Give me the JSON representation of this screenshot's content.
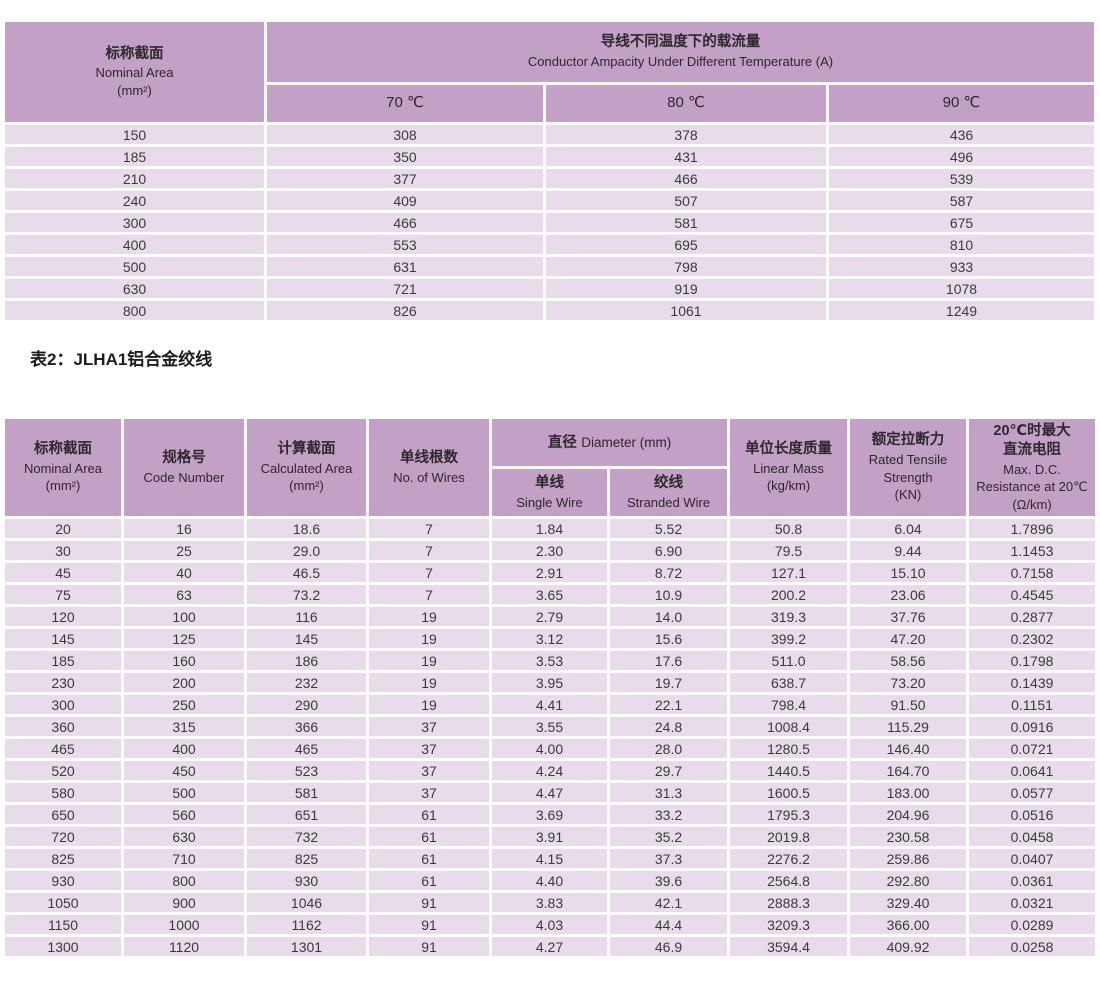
{
  "colors": {
    "header_bg": "#c3a0c5",
    "row_bg": "#e8dcea",
    "page_bg": "#ffffff",
    "text": "#3a3a3a"
  },
  "table1": {
    "nominal_area_zh": "标称截面",
    "nominal_area_en": "Nominal Area\n(mm²)",
    "group_title_zh": "导线不同温度下的载流量",
    "group_title_en": "Conductor Ampacity Under Different Temperature (A)",
    "temps": [
      "70 ℃",
      "80 ℃",
      "90 ℃"
    ],
    "rows": [
      [
        "150",
        "308",
        "378",
        "436"
      ],
      [
        "185",
        "350",
        "431",
        "496"
      ],
      [
        "210",
        "377",
        "466",
        "539"
      ],
      [
        "240",
        "409",
        "507",
        "587"
      ],
      [
        "300",
        "466",
        "581",
        "675"
      ],
      [
        "400",
        "553",
        "695",
        "810"
      ],
      [
        "500",
        "631",
        "798",
        "933"
      ],
      [
        "630",
        "721",
        "919",
        "1078"
      ],
      [
        "800",
        "826",
        "1061",
        "1249"
      ]
    ]
  },
  "caption": "表2：JLHA1铝合金绞线",
  "table2": {
    "headers": {
      "nominal_area_zh": "标称截面",
      "nominal_area_en": "Nominal Area\n(mm²)",
      "code_number_zh": "规格号",
      "code_number_en": "Code Number",
      "calculated_area_zh": "计算截面",
      "calculated_area_en": "Calculated Area\n(mm²)",
      "no_of_wires_zh": "单线根数",
      "no_of_wires_en": "No. of Wires",
      "diameter_zh": "直径",
      "diameter_en": "Diameter (mm)",
      "single_wire_zh": "单线",
      "single_wire_en": "Single Wire",
      "stranded_wire_zh": "绞线",
      "stranded_wire_en": "Stranded Wire",
      "linear_mass_zh": "单位长度质量",
      "linear_mass_en": "Linear Mass\n(kg/km)",
      "tensile_zh": "额定拉断力",
      "tensile_en": "Rated Tensile\nStrength\n(KN)",
      "resistance_zh": "20℃时最大\n直流电阻",
      "resistance_en": "Max. D.C.\nResistance at 20℃\n(Ω/km)"
    },
    "rows": [
      [
        "20",
        "16",
        "18.6",
        "7",
        "1.84",
        "5.52",
        "50.8",
        "6.04",
        "1.7896"
      ],
      [
        "30",
        "25",
        "29.0",
        "7",
        "2.30",
        "6.90",
        "79.5",
        "9.44",
        "1.1453"
      ],
      [
        "45",
        "40",
        "46.5",
        "7",
        "2.91",
        "8.72",
        "127.1",
        "15.10",
        "0.7158"
      ],
      [
        "75",
        "63",
        "73.2",
        "7",
        "3.65",
        "10.9",
        "200.2",
        "23.06",
        "0.4545"
      ],
      [
        "120",
        "100",
        "116",
        "19",
        "2.79",
        "14.0",
        "319.3",
        "37.76",
        "0.2877"
      ],
      [
        "145",
        "125",
        "145",
        "19",
        "3.12",
        "15.6",
        "399.2",
        "47.20",
        "0.2302"
      ],
      [
        "185",
        "160",
        "186",
        "19",
        "3.53",
        "17.6",
        "511.0",
        "58.56",
        "0.1798"
      ],
      [
        "230",
        "200",
        "232",
        "19",
        "3.95",
        "19.7",
        "638.7",
        "73.20",
        "0.1439"
      ],
      [
        "300",
        "250",
        "290",
        "19",
        "4.41",
        "22.1",
        "798.4",
        "91.50",
        "0.1151"
      ],
      [
        "360",
        "315",
        "366",
        "37",
        "3.55",
        "24.8",
        "1008.4",
        "115.29",
        "0.0916"
      ],
      [
        "465",
        "400",
        "465",
        "37",
        "4.00",
        "28.0",
        "1280.5",
        "146.40",
        "0.0721"
      ],
      [
        "520",
        "450",
        "523",
        "37",
        "4.24",
        "29.7",
        "1440.5",
        "164.70",
        "0.0641"
      ],
      [
        "580",
        "500",
        "581",
        "37",
        "4.47",
        "31.3",
        "1600.5",
        "183.00",
        "0.0577"
      ],
      [
        "650",
        "560",
        "651",
        "61",
        "3.69",
        "33.2",
        "1795.3",
        "204.96",
        "0.0516"
      ],
      [
        "720",
        "630",
        "732",
        "61",
        "3.91",
        "35.2",
        "2019.8",
        "230.58",
        "0.0458"
      ],
      [
        "825",
        "710",
        "825",
        "61",
        "4.15",
        "37.3",
        "2276.2",
        "259.86",
        "0.0407"
      ],
      [
        "930",
        "800",
        "930",
        "61",
        "4.40",
        "39.6",
        "2564.8",
        "292.80",
        "0.0361"
      ],
      [
        "1050",
        "900",
        "1046",
        "91",
        "3.83",
        "42.1",
        "2888.3",
        "329.40",
        "0.0321"
      ],
      [
        "1150",
        "1000",
        "1162",
        "91",
        "4.03",
        "44.4",
        "3209.3",
        "366.00",
        "0.0289"
      ],
      [
        "1300",
        "1120",
        "1301",
        "91",
        "4.27",
        "46.9",
        "3594.4",
        "409.92",
        "0.0258"
      ]
    ]
  }
}
